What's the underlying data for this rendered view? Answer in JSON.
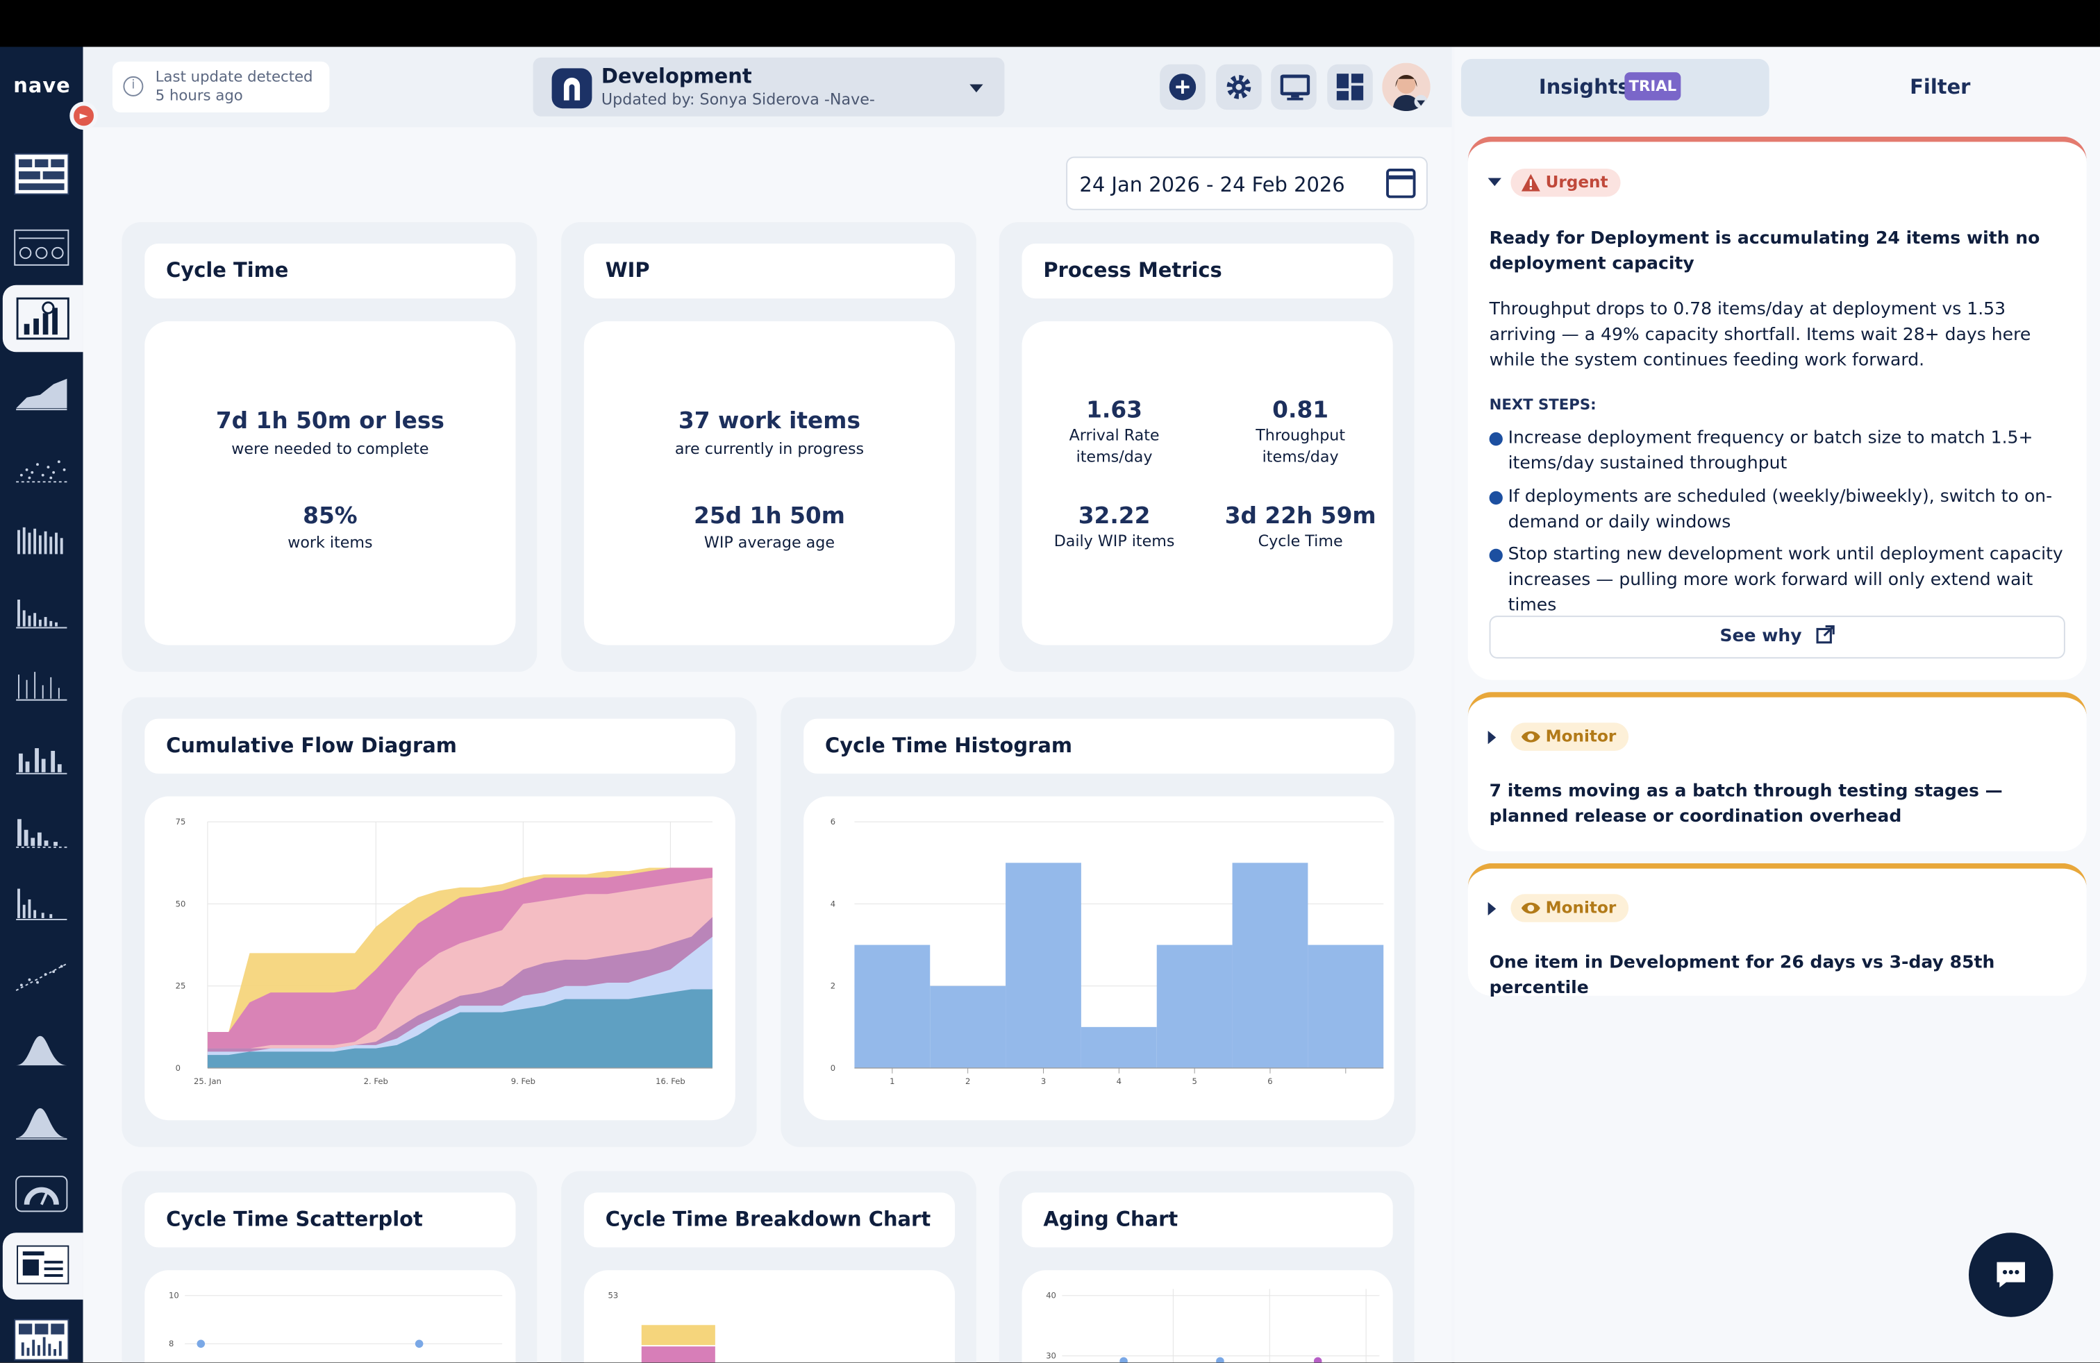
{
  "app": {
    "logo": "nave"
  },
  "header": {
    "last_update_line1": "Last update detected",
    "last_update_line2": "5 hours ago",
    "board_name": "Development",
    "board_updated_by": "Updated by: Sonya Siderova -Nave-",
    "date_range": "24 Jan 2026 - 24 Feb 2026"
  },
  "cards": {
    "cycle_time": {
      "title": "Cycle Time",
      "big1": "7d 1h 50m or less",
      "small1": "were needed to complete",
      "big2": "85%",
      "small2": "work items"
    },
    "wip": {
      "title": "WIP",
      "big1": "37 work items",
      "small1": "are currently in progress",
      "big2": "25d 1h 50m",
      "small2": "WIP average age"
    },
    "process": {
      "title": "Process Metrics",
      "metrics": [
        {
          "value": "1.63",
          "label1": "Arrival Rate",
          "label2": "items/day"
        },
        {
          "value": "0.81",
          "label1": "Throughput",
          "label2": "items/day"
        },
        {
          "value": "32.22",
          "label1": "Daily WIP items",
          "label2": ""
        },
        {
          "value": "3d 22h 59m",
          "label1": "Cycle Time",
          "label2": ""
        }
      ]
    },
    "cfd_title": "Cumulative Flow Diagram",
    "hist_title": "Cycle Time Histogram",
    "scatter_title": "Cycle Time Scatterplot",
    "breakdown_title": "Cycle Time Breakdown Chart",
    "aging_title": "Aging Chart"
  },
  "chart_data": [
    {
      "type": "area",
      "title": "Cumulative Flow Diagram",
      "x": [
        "25 Jan",
        "26 Jan",
        "27 Jan",
        "28 Jan",
        "29 Jan",
        "30 Jan",
        "31 Jan",
        "1 Feb",
        "2 Feb",
        "3 Feb",
        "4 Feb",
        "5 Feb",
        "6 Feb",
        "7 Feb",
        "8 Feb",
        "9 Feb",
        "10 Feb",
        "11 Feb",
        "12 Feb",
        "13 Feb",
        "14 Feb",
        "15 Feb",
        "16 Feb",
        "17 Feb",
        "18 Feb"
      ],
      "x_ticks": [
        "25. Jan",
        "2. Feb",
        "9. Feb",
        "16. Feb"
      ],
      "ylim": [
        0,
        75
      ],
      "y_ticks": [
        0,
        25,
        50,
        75
      ],
      "series": [
        {
          "color": "#5a9dbf",
          "values": [
            4,
            4,
            5,
            5,
            5,
            5,
            5,
            6,
            6,
            7,
            10,
            14,
            17,
            17,
            17,
            18,
            19,
            21,
            21,
            21,
            21,
            22,
            23,
            24,
            24
          ]
        },
        {
          "color": "#c7dcfb",
          "values": [
            5,
            5,
            5,
            6,
            6,
            6,
            6,
            7,
            7,
            9,
            13,
            16,
            19,
            19,
            19,
            22,
            23,
            25,
            25,
            26,
            26,
            28,
            30,
            35,
            40
          ]
        },
        {
          "color": "#b682b8",
          "values": [
            6,
            6,
            6,
            6,
            6,
            6,
            6,
            7,
            8,
            12,
            16,
            19,
            22,
            23,
            25,
            30,
            32,
            33,
            33,
            34,
            35,
            36,
            38,
            40,
            46
          ]
        },
        {
          "color": "#f5c0c4",
          "values": [
            6,
            6,
            6,
            7,
            7,
            7,
            7,
            8,
            12,
            22,
            30,
            35,
            38,
            40,
            42,
            50,
            51,
            52,
            53,
            53,
            54,
            55,
            56,
            57,
            58
          ]
        },
        {
          "color": "#d77eb8",
          "values": [
            11,
            11,
            20,
            23,
            23,
            23,
            23,
            24,
            30,
            37,
            44,
            48,
            52,
            53,
            54,
            56,
            58,
            58,
            58,
            58,
            59,
            60,
            61,
            61,
            61
          ]
        },
        {
          "color": "#f5d57c",
          "values": [
            11,
            11,
            35,
            35,
            35,
            35,
            35,
            35,
            43,
            48,
            52,
            54,
            55,
            55,
            56,
            58,
            59,
            59,
            59,
            60,
            60,
            61,
            61,
            61,
            61
          ]
        }
      ]
    },
    {
      "type": "bar",
      "title": "Cycle Time Histogram",
      "categories": [
        "1",
        "2",
        "3",
        "4",
        "5",
        "6",
        ""
      ],
      "values": [
        3,
        2,
        5,
        1,
        3,
        5,
        3
      ],
      "ylim": [
        0,
        6
      ],
      "y_ticks": [
        0,
        2,
        4,
        6
      ]
    },
    {
      "type": "scatter",
      "title": "Cycle Time Scatterplot",
      "y_ticks": [
        10,
        8
      ],
      "points": [
        {
          "x": 1,
          "y": 8
        },
        {
          "x": 6,
          "y": 8
        }
      ]
    },
    {
      "type": "bar",
      "title": "Cycle Time Breakdown Chart",
      "y_ticks": [
        53
      ]
    },
    {
      "type": "scatter",
      "title": "Aging Chart",
      "y_ticks": [
        40,
        30
      ]
    }
  ],
  "panel": {
    "tab_insights": "Insights",
    "trial_badge": "TRIAL",
    "tab_filter": "Filter",
    "insights": [
      {
        "severity": "Urgent",
        "color": "#e37a6e",
        "title": "Ready for Deployment is accumulating 24 items with no deployment capacity",
        "text": "Throughput drops to 0.78 items/day at deployment vs 1.53 arriving — a 49% capacity shortfall. Items wait 28+ days here while the system continues feeding work forward.",
        "next_steps_label": "NEXT STEPS:",
        "steps": [
          "Increase deployment frequency or batch size to match 1.5+ items/day sustained throughput",
          "If deployments are scheduled (weekly/biweekly), switch to on-demand or daily windows",
          "Stop starting new development work until deployment capacity increases — pulling more work forward will only extend wait times"
        ],
        "see_why": "See why"
      },
      {
        "severity": "Monitor",
        "color": "#e8a73a",
        "title": "7 items moving as a batch through testing stages — planned release or coordination overhead"
      },
      {
        "severity": "Monitor",
        "color": "#e8a73a",
        "title": "One item in Development for 26 days vs 3-day 85th percentile"
      }
    ]
  }
}
